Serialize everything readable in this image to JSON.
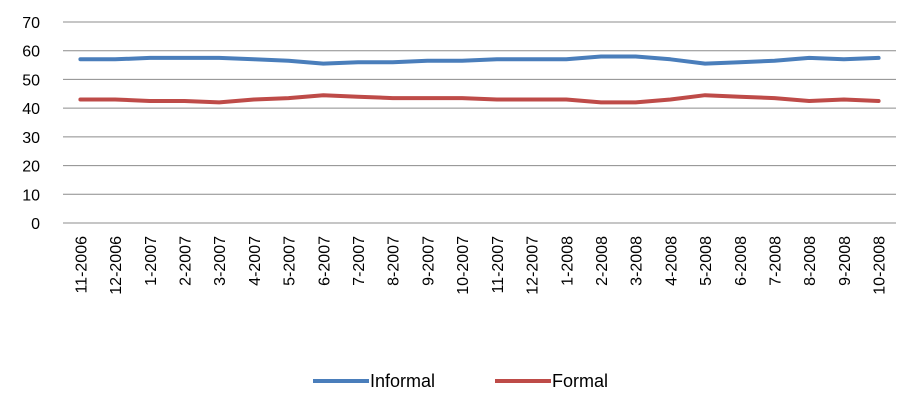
{
  "chart_data": {
    "type": "line",
    "title": "",
    "xlabel": "",
    "ylabel": "",
    "ylim": [
      0,
      70
    ],
    "yticks": [
      0,
      10,
      20,
      30,
      40,
      50,
      60,
      70
    ],
    "grid": "horizontal",
    "legend": "bottom",
    "categories": [
      "11-2006",
      "12-2006",
      "1-2007",
      "2-2007",
      "3-2007",
      "4-2007",
      "5-2007",
      "6-2007",
      "7-2007",
      "8-2007",
      "9-2007",
      "10-2007",
      "11-2007",
      "12-2007",
      "1-2008",
      "2-2008",
      "3-2008",
      "4-2008",
      "5-2008",
      "6-2008",
      "7-2008",
      "8-2008",
      "9-2008",
      "10-2008"
    ],
    "series": [
      {
        "name": "Informal",
        "color": "#4a7ebb",
        "values": [
          57.0,
          57.0,
          57.5,
          57.5,
          57.5,
          57.0,
          56.5,
          55.5,
          56.0,
          56.0,
          56.5,
          56.5,
          57.0,
          57.0,
          57.0,
          58.0,
          58.0,
          57.0,
          55.5,
          56.0,
          56.5,
          57.5,
          57.0,
          57.5
        ]
      },
      {
        "name": "Formal",
        "color": "#be4b48",
        "values": [
          43.0,
          43.0,
          42.5,
          42.5,
          42.0,
          43.0,
          43.5,
          44.5,
          44.0,
          43.5,
          43.5,
          43.5,
          43.0,
          43.0,
          43.0,
          42.0,
          42.0,
          43.0,
          44.5,
          44.0,
          43.5,
          42.5,
          43.0,
          42.5
        ]
      }
    ]
  }
}
